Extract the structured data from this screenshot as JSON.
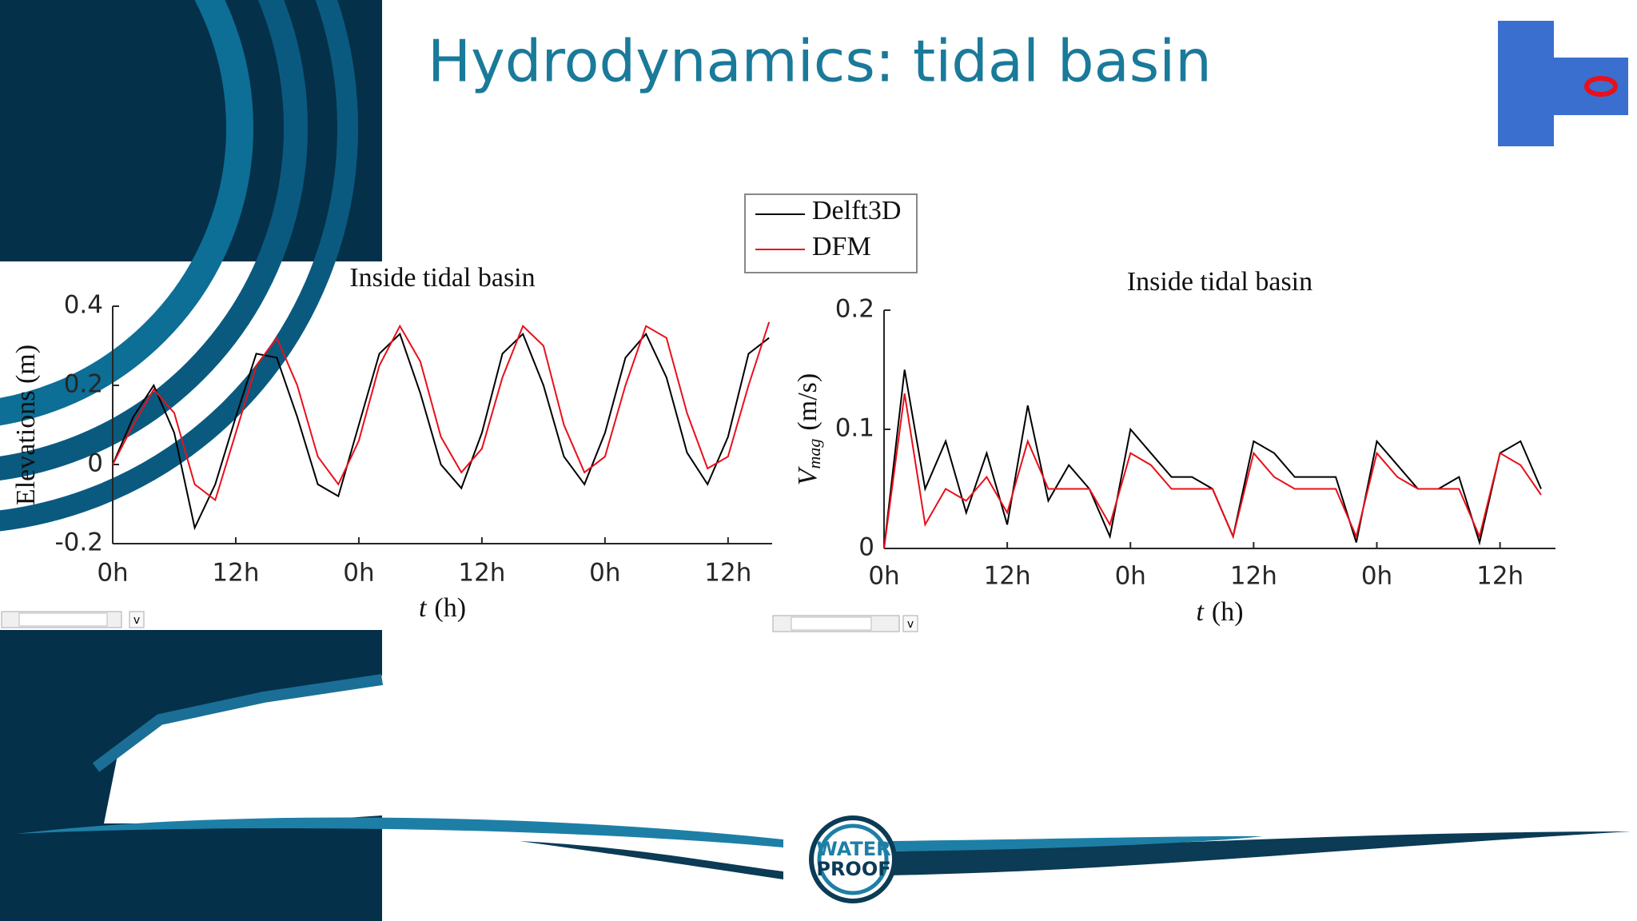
{
  "title": "Hydrodynamics: tidal basin",
  "logo": {
    "line1": "WATER",
    "line2": "PROOF"
  },
  "controls": [
    "v",
    "v"
  ],
  "chart_data": [
    {
      "type": "line",
      "title": "Inside tidal basin",
      "y_label": "Elevations (m)",
      "x_label": {
        "symbol": "t",
        "unit": "(h)"
      },
      "x": [
        0,
        2,
        4,
        6,
        8,
        10,
        12,
        14,
        16,
        18,
        20,
        22,
        24,
        26,
        28,
        30,
        32,
        34,
        36,
        38,
        40,
        42,
        44,
        46,
        48,
        50,
        52,
        54,
        56,
        58,
        60,
        62,
        64
      ],
      "xlim": [
        0,
        64.3
      ],
      "xticks": [
        {
          "value": 0,
          "label": "0h"
        },
        {
          "value": 12,
          "label": "12h"
        },
        {
          "value": 24,
          "label": "0h"
        },
        {
          "value": 36,
          "label": "12h"
        },
        {
          "value": 48,
          "label": "0h"
        },
        {
          "value": 60,
          "label": "12h"
        }
      ],
      "ylim": [
        -0.2,
        0.4
      ],
      "yticks": [
        -0.2,
        0,
        0.2,
        0.4
      ],
      "series": [
        {
          "name": "Delft3D",
          "color": "#000000",
          "values": [
            0,
            0.12,
            0.2,
            0.08,
            -0.16,
            -0.05,
            0.12,
            0.28,
            0.27,
            0.12,
            -0.05,
            -0.08,
            0.1,
            0.28,
            0.33,
            0.18,
            0.0,
            -0.06,
            0.08,
            0.28,
            0.33,
            0.2,
            0.02,
            -0.05,
            0.08,
            0.27,
            0.33,
            0.22,
            0.03,
            -0.05,
            0.07,
            0.28,
            0.32
          ]
        },
        {
          "name": "DFM",
          "color": "#e8101a",
          "values": [
            0,
            0.1,
            0.19,
            0.13,
            -0.05,
            -0.09,
            0.08,
            0.25,
            0.32,
            0.2,
            0.02,
            -0.05,
            0.06,
            0.25,
            0.35,
            0.26,
            0.07,
            -0.02,
            0.04,
            0.22,
            0.35,
            0.3,
            0.1,
            -0.02,
            0.02,
            0.2,
            0.35,
            0.32,
            0.13,
            -0.01,
            0.02,
            0.2,
            0.36
          ]
        }
      ]
    },
    {
      "type": "line",
      "title": "Inside tidal basin",
      "y_label": {
        "symbol": "V",
        "subscript": "mag",
        "unit": "(m/s)"
      },
      "x_label": {
        "symbol": "t",
        "unit": "(h)"
      },
      "x": [
        0,
        2,
        4,
        6,
        8,
        10,
        12,
        14,
        16,
        18,
        20,
        22,
        24,
        26,
        28,
        30,
        32,
        34,
        36,
        38,
        40,
        42,
        44,
        46,
        48,
        50,
        52,
        54,
        56,
        58,
        60,
        62,
        64
      ],
      "xlim": [
        0,
        65.4
      ],
      "xticks": [
        {
          "value": 0,
          "label": "0h"
        },
        {
          "value": 12,
          "label": "12h"
        },
        {
          "value": 24,
          "label": "0h"
        },
        {
          "value": 36,
          "label": "12h"
        },
        {
          "value": 48,
          "label": "0h"
        },
        {
          "value": 60,
          "label": "12h"
        }
      ],
      "ylim": [
        0,
        0.2
      ],
      "yticks": [
        0,
        0.1,
        0.2
      ],
      "series": [
        {
          "color": "#000000",
          "values": [
            0,
            0.15,
            0.05,
            0.09,
            0.03,
            0.08,
            0.02,
            0.12,
            0.04,
            0.07,
            0.05,
            0.01,
            0.1,
            0.08,
            0.06,
            0.06,
            0.05,
            0.01,
            0.09,
            0.08,
            0.06,
            0.06,
            0.06,
            0.005,
            0.09,
            0.07,
            0.05,
            0.05,
            0.06,
            0.005,
            0.08,
            0.09,
            0.05
          ]
        },
        {
          "color": "#e8101a",
          "values": [
            0,
            0.13,
            0.02,
            0.05,
            0.04,
            0.06,
            0.03,
            0.09,
            0.05,
            0.05,
            0.05,
            0.02,
            0.08,
            0.07,
            0.05,
            0.05,
            0.05,
            0.01,
            0.08,
            0.06,
            0.05,
            0.05,
            0.05,
            0.01,
            0.08,
            0.06,
            0.05,
            0.05,
            0.05,
            0.01,
            0.08,
            0.07,
            0.045
          ]
        }
      ]
    }
  ]
}
